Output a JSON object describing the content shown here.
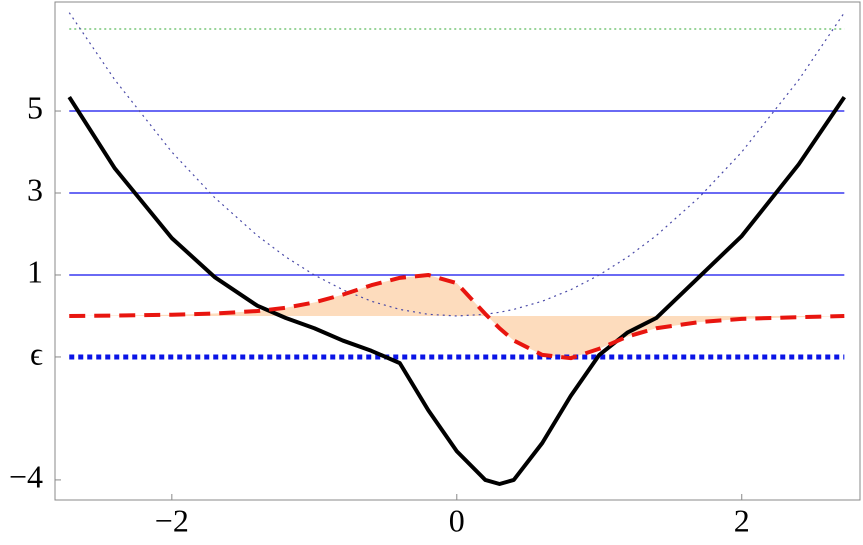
{
  "chart_data": {
    "type": "line",
    "xlim": [
      -2.82,
      2.83
    ],
    "ylim": [
      -4.49,
      7.66
    ],
    "xticks": [
      {
        "value": -2,
        "label": "−2"
      },
      0,
      2
    ],
    "yticks": [
      {
        "value": -4,
        "label": "−4"
      },
      {
        "value": -1,
        "label": "ϵ"
      },
      1,
      3,
      5
    ],
    "x": [
      -2.72,
      -2.4,
      -2.0,
      -1.7,
      -1.4,
      -1.2,
      -1.0,
      -0.8,
      -0.6,
      -0.4,
      -0.2,
      0,
      0.2,
      0.3,
      0.4,
      0.6,
      0.8,
      1.0,
      1.2,
      1.4,
      1.7,
      2.0,
      2.4,
      2.72
    ],
    "series": [
      {
        "color": "#000000",
        "style": "solid",
        "width": 4,
        "values": [
          5.34,
          3.6,
          1.9,
          0.95,
          0.25,
          -0.05,
          -0.3,
          -0.6,
          -0.85,
          -1.15,
          -2.3,
          -3.3,
          -4.0,
          -4.1,
          -4.0,
          -3.1,
          -1.95,
          -0.95,
          -0.4,
          -0.05,
          0.95,
          1.95,
          3.7,
          5.34
        ]
      },
      {
        "color": "#e8150f",
        "style": "dashed",
        "width": 4,
        "fill": "#fddcbd",
        "values": [
          0.0,
          0.01,
          0.03,
          0.06,
          0.12,
          0.2,
          0.33,
          0.52,
          0.75,
          0.93,
          1.0,
          0.8,
          0.05,
          -0.3,
          -0.6,
          -0.95,
          -1.03,
          -0.8,
          -0.5,
          -0.3,
          -0.15,
          -0.07,
          -0.03,
          0.0
        ]
      },
      {
        "color": "#4a4aa8",
        "style": "dotted",
        "width": 1.2,
        "values": [
          7.4,
          5.76,
          4,
          2.89,
          1.96,
          1.44,
          1,
          0.64,
          0.36,
          0.16,
          0.04,
          0,
          0.04,
          0.09,
          0.16,
          0.36,
          0.64,
          1,
          1.44,
          1.96,
          2.89,
          4,
          5.76,
          7.4
        ]
      }
    ],
    "hlines": [
      {
        "value": 5,
        "color": "#1010ee",
        "style": "solid",
        "width": 1.3
      },
      {
        "value": 3,
        "color": "#1010ee",
        "style": "solid",
        "width": 1.3
      },
      {
        "value": 1,
        "color": "#1010ee",
        "style": "solid",
        "width": 1.3
      },
      {
        "value": -1,
        "color": "#0a14e6",
        "style": "dotted",
        "width": 5
      },
      {
        "value": 7,
        "color": "#33aa33",
        "style": "dotted",
        "width": 1
      }
    ]
  }
}
